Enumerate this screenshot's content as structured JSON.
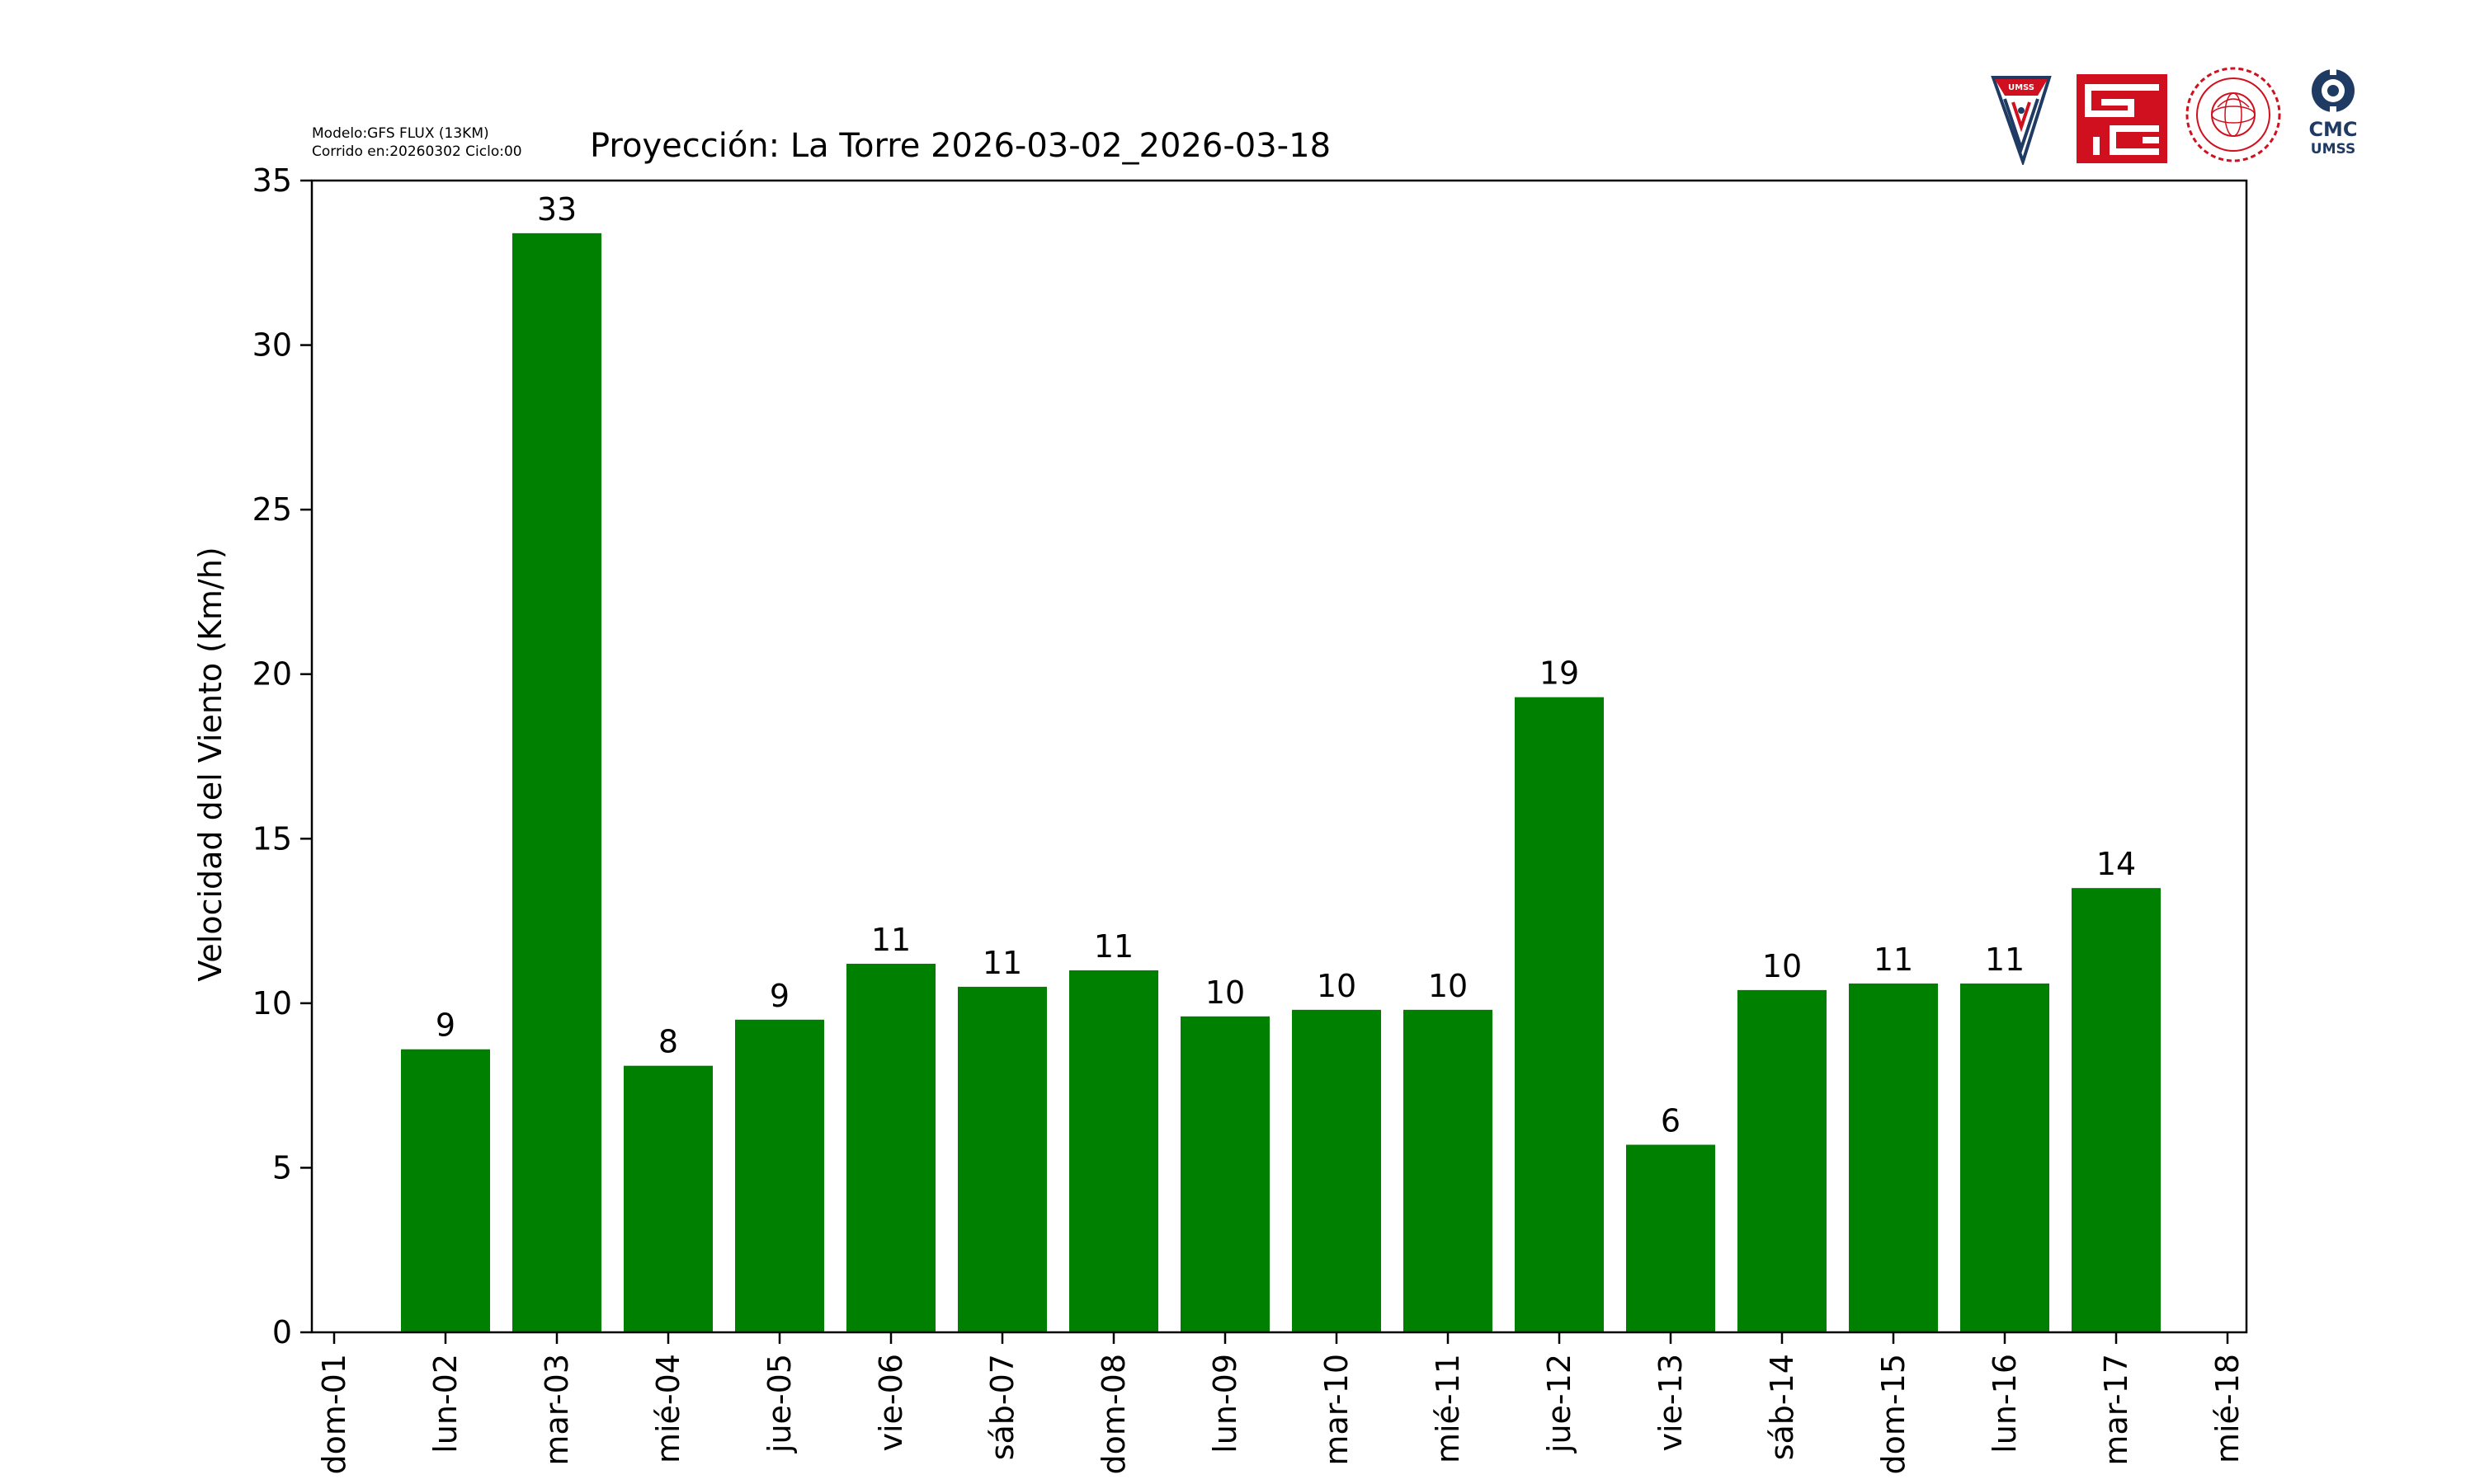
{
  "header": {
    "model_line": "Modelo:GFS FLUX (13KM)",
    "run_line": "Corrido en:20260302 Ciclo:00"
  },
  "logos": {
    "umss": {
      "name": "UMSS"
    },
    "cmc": {
      "line1": "CMC",
      "line2": "UMSS"
    }
  },
  "colors": {
    "bar": "#008000",
    "axis": "#000000",
    "background": "#ffffff",
    "logo_red": "#d1101f",
    "logo_navy": "#1f3a63"
  },
  "chart_data": {
    "type": "bar",
    "title": "Proyección: La Torre  2026-03-02_2026-03-18",
    "ylabel": "Velocidad del Viento (Km/h)",
    "xlabel": "",
    "ylim": [
      0,
      35
    ],
    "yticks": [
      0,
      5,
      10,
      15,
      20,
      25,
      30,
      35
    ],
    "xtick_labels": [
      "dom-01",
      "lun-02",
      "mar-03",
      "mié-04",
      "jue-05",
      "vie-06",
      "sáb-07",
      "dom-08",
      "lun-09",
      "mar-10",
      "mié-11",
      "jue-12",
      "vie-13",
      "sáb-14",
      "dom-15",
      "lun-16",
      "mar-17",
      "mié-18"
    ],
    "categories": [
      "lun-02",
      "mar-03",
      "mié-04",
      "jue-05",
      "vie-06",
      "sáb-07",
      "dom-08",
      "lun-09",
      "mar-10",
      "mié-11",
      "jue-12",
      "vie-13",
      "sáb-14",
      "dom-15",
      "lun-16",
      "mar-17"
    ],
    "values": [
      8.6,
      33.4,
      8.1,
      9.5,
      11.2,
      10.5,
      11.0,
      9.6,
      9.8,
      9.8,
      19.3,
      5.7,
      10.4,
      10.6,
      10.6,
      13.5
    ],
    "data_labels": [
      "9",
      "33",
      "8",
      "9",
      "11",
      "11",
      "11",
      "10",
      "10",
      "10",
      "19",
      "6",
      "10",
      "11",
      "11",
      "14"
    ],
    "grid": false,
    "legend": "none"
  }
}
